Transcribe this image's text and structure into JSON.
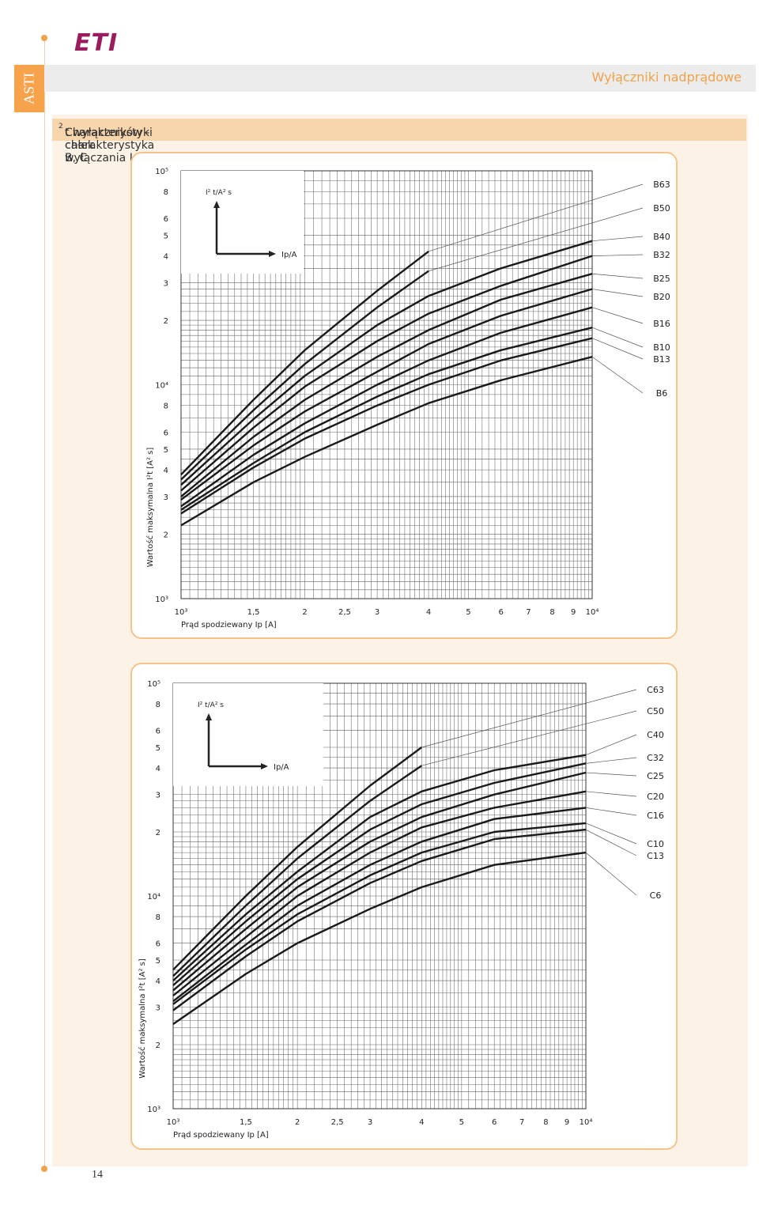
{
  "brand": {
    "logo_text": "ETI",
    "accent_color": "#f0a24a",
    "logo_color": "#9b1b5f"
  },
  "side_tab": "ASTI",
  "header": {
    "title": "Wyłączniki nadprądowe"
  },
  "section": {
    "title_pre": "Charakterystyki całek wyłączania I",
    "title_sup": "2",
    "title_post": "t  wyłączników - charakterystyka B, C"
  },
  "page_number": "14",
  "chart_data": [
    {
      "type": "line",
      "xlabel": "Prąd spodziewany Ip [A]",
      "ylabel": "Wartość maksymalna I²t [A² s]",
      "xscale": "log",
      "yscale": "log",
      "xlim": [
        1000,
        10000
      ],
      "ylim": [
        1000,
        100000
      ],
      "grid": true,
      "x_ticks": [
        "10³",
        "1,5",
        "2",
        "2,5",
        "3",
        "4",
        "5",
        "6",
        "7",
        "8",
        "9",
        "10⁴"
      ],
      "y_ticks": [
        "10³",
        "2",
        "3",
        "4",
        "5",
        "6",
        "8",
        "10⁴",
        "2",
        "3",
        "4",
        "5",
        "6",
        "8",
        "10⁵"
      ],
      "inset": {
        "ylabel": "I² t/A² s",
        "xlabel": "Ip/A"
      },
      "series": [
        {
          "name": "B63",
          "x": [
            1000,
            1500,
            2000,
            3000,
            4000
          ],
          "y": [
            3800,
            8500,
            14500,
            27500,
            42000
          ]
        },
        {
          "name": "B50",
          "x": [
            1000,
            1500,
            2000,
            3000,
            4000
          ],
          "y": [
            3600,
            7600,
            12500,
            23000,
            34000
          ]
        },
        {
          "name": "B40",
          "x": [
            1000,
            1500,
            2000,
            3000,
            4000,
            6000,
            10000
          ],
          "y": [
            3400,
            6900,
            11000,
            19000,
            26000,
            35000,
            47000
          ]
        },
        {
          "name": "B32",
          "x": [
            1000,
            1500,
            2000,
            3000,
            4000,
            6000,
            10000
          ],
          "y": [
            3200,
            6300,
            9800,
            16000,
            21500,
            29000,
            40000
          ]
        },
        {
          "name": "B25",
          "x": [
            1000,
            1500,
            2000,
            3000,
            4000,
            6000,
            10000
          ],
          "y": [
            3000,
            5700,
            8500,
            13500,
            18000,
            25000,
            33000
          ]
        },
        {
          "name": "B20",
          "x": [
            1000,
            1500,
            2000,
            3000,
            4000,
            6000,
            10000
          ],
          "y": [
            2900,
            5200,
            7500,
            11500,
            15500,
            21000,
            28000
          ]
        },
        {
          "name": "B16",
          "x": [
            1000,
            1500,
            2000,
            3000,
            4000,
            6000,
            10000
          ],
          "y": [
            2700,
            4700,
            6600,
            10000,
            13000,
            17500,
            23000
          ]
        },
        {
          "name": "B10",
          "x": [
            1000,
            1500,
            2000,
            3000,
            4000,
            6000,
            10000
          ],
          "y": [
            2600,
            4300,
            6000,
            8800,
            11200,
            14500,
            18500
          ]
        },
        {
          "name": "B13",
          "x": [
            1000,
            1500,
            2000,
            3000,
            4000,
            6000,
            10000
          ],
          "y": [
            2500,
            4100,
            5600,
            8000,
            10000,
            13000,
            16500
          ]
        },
        {
          "name": "B6",
          "x": [
            1000,
            1500,
            2000,
            3000,
            4000,
            6000,
            10000
          ],
          "y": [
            2200,
            3500,
            4600,
            6500,
            8200,
            10500,
            13500
          ]
        }
      ]
    },
    {
      "type": "line",
      "xlabel": "Prąd spodziewany Ip [A]",
      "ylabel": "Wartość maksymalna I²t [A² s]",
      "xscale": "log",
      "yscale": "log",
      "xlim": [
        1000,
        10000
      ],
      "ylim": [
        1000,
        100000
      ],
      "grid": true,
      "x_ticks": [
        "10³",
        "1,5",
        "2",
        "2,5",
        "3",
        "4",
        "5",
        "6",
        "7",
        "8",
        "9",
        "10⁴"
      ],
      "y_ticks": [
        "10³",
        "2",
        "3",
        "4",
        "5",
        "6",
        "8",
        "10⁴",
        "2",
        "3",
        "4",
        "5",
        "6",
        "8",
        "10⁵"
      ],
      "inset": {
        "ylabel": "I² t/A² s",
        "xlabel": "Ip/A"
      },
      "series": [
        {
          "name": "C63",
          "x": [
            1000,
            1500,
            2000,
            3000,
            4000
          ],
          "y": [
            4500,
            10000,
            17000,
            33000,
            50000
          ]
        },
        {
          "name": "C50",
          "x": [
            1000,
            1500,
            2000,
            3000,
            4000
          ],
          "y": [
            4200,
            9000,
            15000,
            28000,
            41000
          ]
        },
        {
          "name": "C40",
          "x": [
            1000,
            1500,
            2000,
            3000,
            4000,
            6000,
            10000
          ],
          "y": [
            4000,
            8200,
            13000,
            23500,
            31000,
            39000,
            46000
          ]
        },
        {
          "name": "C32",
          "x": [
            1000,
            1500,
            2000,
            3000,
            4000,
            6000,
            10000
          ],
          "y": [
            3800,
            7600,
            12000,
            20500,
            27000,
            34000,
            42000
          ]
        },
        {
          "name": "C25",
          "x": [
            1000,
            1500,
            2000,
            3000,
            4000,
            6000,
            10000
          ],
          "y": [
            3600,
            7000,
            11000,
            18000,
            23500,
            30000,
            38000
          ]
        },
        {
          "name": "C20",
          "x": [
            1000,
            1500,
            2000,
            3000,
            4000,
            6000,
            10000
          ],
          "y": [
            3400,
            6400,
            10000,
            16000,
            21000,
            26000,
            31000
          ]
        },
        {
          "name": "C16",
          "x": [
            1000,
            1500,
            2000,
            3000,
            4000,
            6000,
            10000
          ],
          "y": [
            3200,
            5900,
            9000,
            14000,
            18000,
            23000,
            26000
          ]
        },
        {
          "name": "C10",
          "x": [
            1000,
            1500,
            2000,
            3000,
            4000,
            6000,
            10000
          ],
          "y": [
            3100,
            5600,
            8200,
            12500,
            16000,
            20000,
            22000
          ]
        },
        {
          "name": "C13",
          "x": [
            1000,
            1500,
            2000,
            3000,
            4000,
            6000,
            10000
          ],
          "y": [
            2900,
            5200,
            7600,
            11500,
            14600,
            18500,
            20500
          ]
        },
        {
          "name": "C6",
          "x": [
            1000,
            1500,
            2000,
            3000,
            4000,
            6000,
            10000
          ],
          "y": [
            2500,
            4300,
            6000,
            8700,
            11000,
            14000,
            16000
          ]
        }
      ]
    }
  ]
}
